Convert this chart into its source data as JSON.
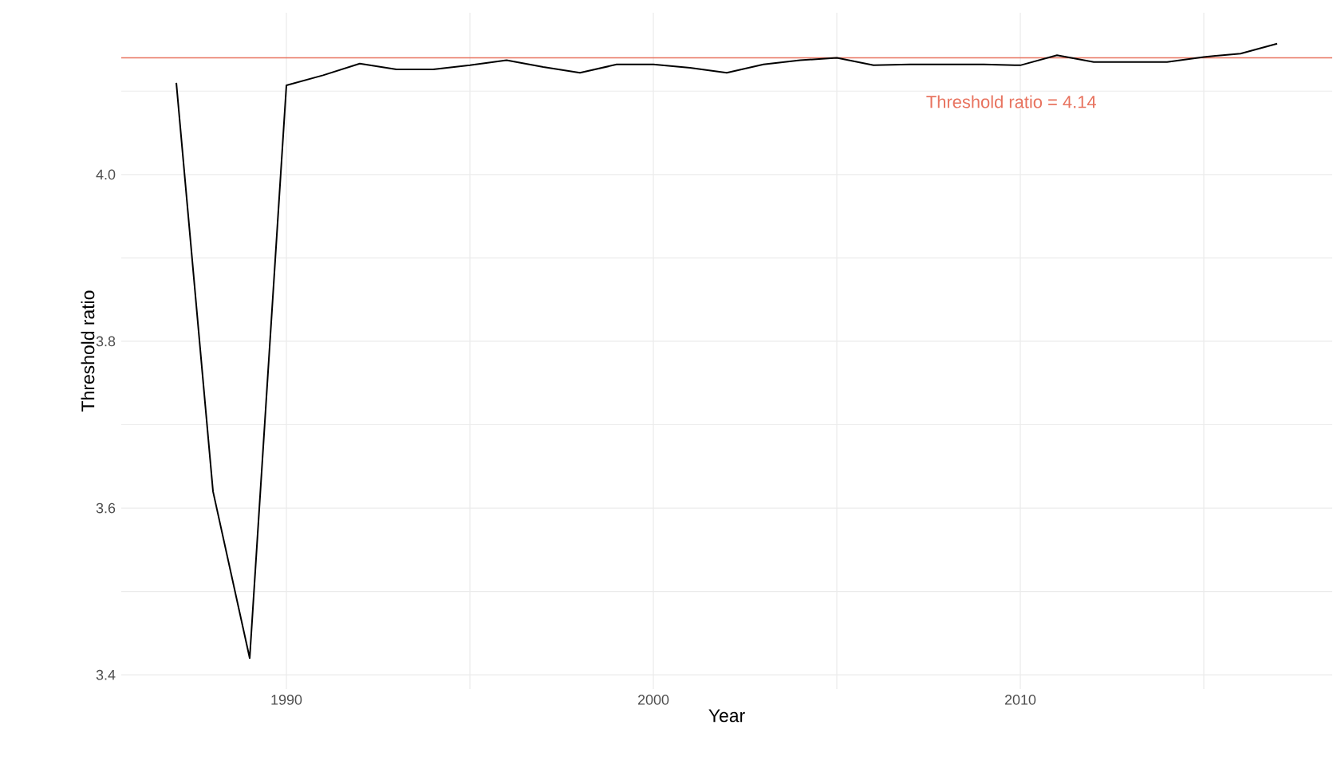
{
  "chart_data": {
    "type": "line",
    "xlabel": "Year",
    "ylabel": "Threshold ratio",
    "x": [
      1987,
      1988,
      1989,
      1990,
      1991,
      1992,
      1993,
      1994,
      1995,
      1996,
      1997,
      1998,
      1999,
      2000,
      2001,
      2002,
      2003,
      2004,
      2005,
      2006,
      2007,
      2008,
      2009,
      2010,
      2011,
      2012,
      2013,
      2014,
      2015,
      2016,
      2017
    ],
    "series": [
      {
        "color": "#000000",
        "values": [
          4.11,
          3.62,
          3.42,
          4.107,
          4.119,
          4.133,
          4.126,
          4.126,
          4.131,
          4.137,
          4.129,
          4.122,
          4.132,
          4.132,
          4.128,
          4.122,
          4.132,
          4.137,
          4.14,
          4.131,
          4.132,
          4.132,
          4.132,
          4.131,
          4.143,
          4.135,
          4.135,
          4.135,
          4.141,
          4.145,
          4.157
        ]
      }
    ],
    "xlim": [
      1985.5,
      2018.5
    ],
    "ylim": [
      3.383,
      4.194
    ],
    "xticks": [
      1990,
      {
        "value": 1995,
        "label": null
      },
      2000,
      {
        "value": 2005,
        "label": null
      },
      2010,
      {
        "value": 2015,
        "label": null
      }
    ],
    "yticks": [
      3.4,
      {
        "value": 3.5,
        "label": null
      },
      3.6,
      {
        "value": 3.7,
        "label": null
      },
      3.8,
      {
        "value": 3.9,
        "label": null
      },
      {
        "value": 4.0,
        "label": "4.0"
      },
      {
        "value": 4.1,
        "label": null
      }
    ],
    "grid": true,
    "marker": "none",
    "line_style": "solid",
    "ref_lines": [
      {
        "axis": "y",
        "value": 4.14,
        "color": "#e8735f"
      }
    ],
    "annotations": [
      "Threshold ratio = 4.14"
    ]
  }
}
